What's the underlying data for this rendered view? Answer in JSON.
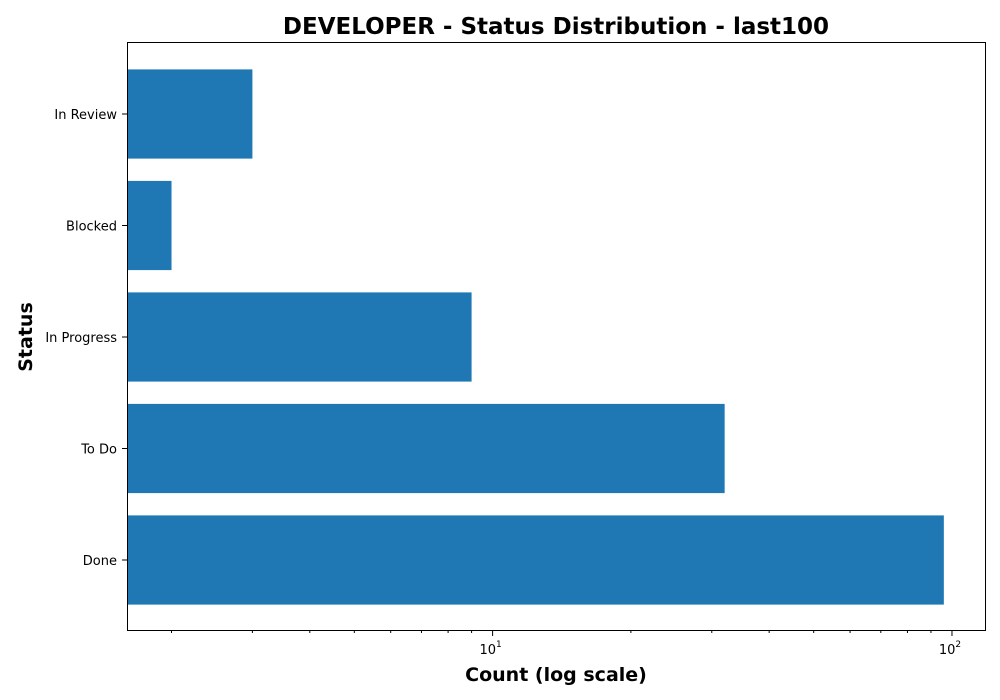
{
  "chart_data": {
    "type": "bar",
    "orientation": "horizontal",
    "title": "DEVELOPER - Status Distribution - last100",
    "xlabel": "Count (log scale)",
    "ylabel": "Status",
    "xscale": "log",
    "xlim": [
      1.6,
      118
    ],
    "categories": [
      "Done",
      "To Do",
      "In Progress",
      "Blocked",
      "In Review"
    ],
    "values": [
      96,
      32,
      9,
      2,
      3
    ],
    "color": "#1f77b4",
    "x_ticks": [
      {
        "value": 10,
        "base": "10",
        "exponent": "1"
      },
      {
        "value": 100,
        "base": "10",
        "exponent": "2"
      }
    ],
    "grid": false,
    "legend": "none"
  }
}
